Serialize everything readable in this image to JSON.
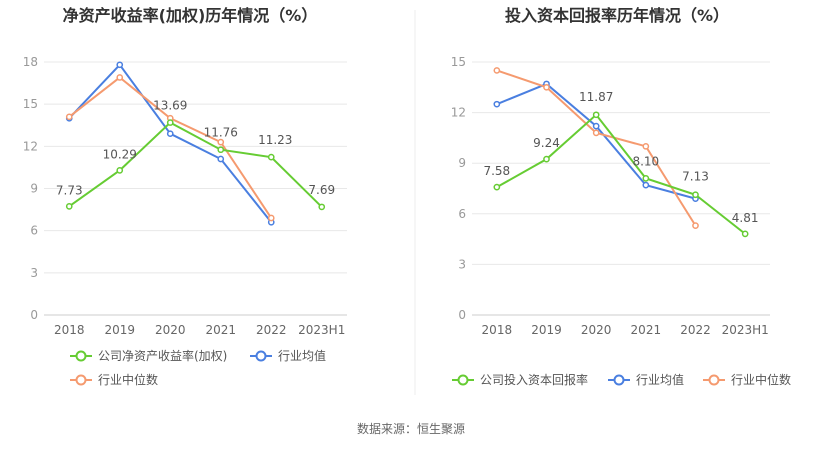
{
  "source_text": "数据来源：恒生聚源",
  "colors": {
    "company": "#66CC33",
    "industry_avg": "#4A7FE0",
    "industry_median": "#F59A6F"
  },
  "chart_data": [
    {
      "type": "line",
      "title": "净资产收益率(加权)历年情况（%）",
      "categories": [
        "2018",
        "2019",
        "2020",
        "2021",
        "2022",
        "2023H1"
      ],
      "ylim": [
        0,
        18
      ],
      "yticks": [
        0,
        3,
        6,
        9,
        12,
        15,
        18
      ],
      "grid": true,
      "legend_placement": "bottom",
      "series": [
        {
          "name": "公司净资产收益率(加权)",
          "key": "company",
          "values": [
            7.73,
            10.29,
            13.69,
            11.76,
            11.23,
            7.69
          ],
          "labels": [
            "7.73",
            "10.29",
            "13.69",
            "11.76",
            "11.23",
            "7.69"
          ]
        },
        {
          "name": "行业均值",
          "key": "industry_avg",
          "values": [
            14.0,
            17.8,
            12.9,
            11.1,
            6.6,
            null
          ]
        },
        {
          "name": "行业中位数",
          "key": "industry_median",
          "values": [
            14.1,
            16.9,
            14.0,
            12.3,
            6.9,
            null
          ]
        }
      ]
    },
    {
      "type": "line",
      "title": "投入资本回报率历年情况（%）",
      "categories": [
        "2018",
        "2019",
        "2020",
        "2021",
        "2022",
        "2023H1"
      ],
      "ylim": [
        0,
        15
      ],
      "yticks": [
        0,
        3,
        6,
        9,
        12,
        15
      ],
      "grid": true,
      "legend_placement": "bottom",
      "series": [
        {
          "name": "公司投入资本回报率",
          "key": "company",
          "values": [
            7.58,
            9.24,
            11.87,
            8.1,
            7.13,
            4.81
          ],
          "labels": [
            "7.58",
            "9.24",
            "11.87",
            "8.10",
            "7.13",
            "4.81"
          ]
        },
        {
          "name": "行业均值",
          "key": "industry_avg",
          "values": [
            12.5,
            13.7,
            11.2,
            7.7,
            6.9,
            null
          ]
        },
        {
          "name": "行业中位数",
          "key": "industry_median",
          "values": [
            14.5,
            13.5,
            10.8,
            10.0,
            5.3,
            null
          ]
        }
      ]
    }
  ]
}
